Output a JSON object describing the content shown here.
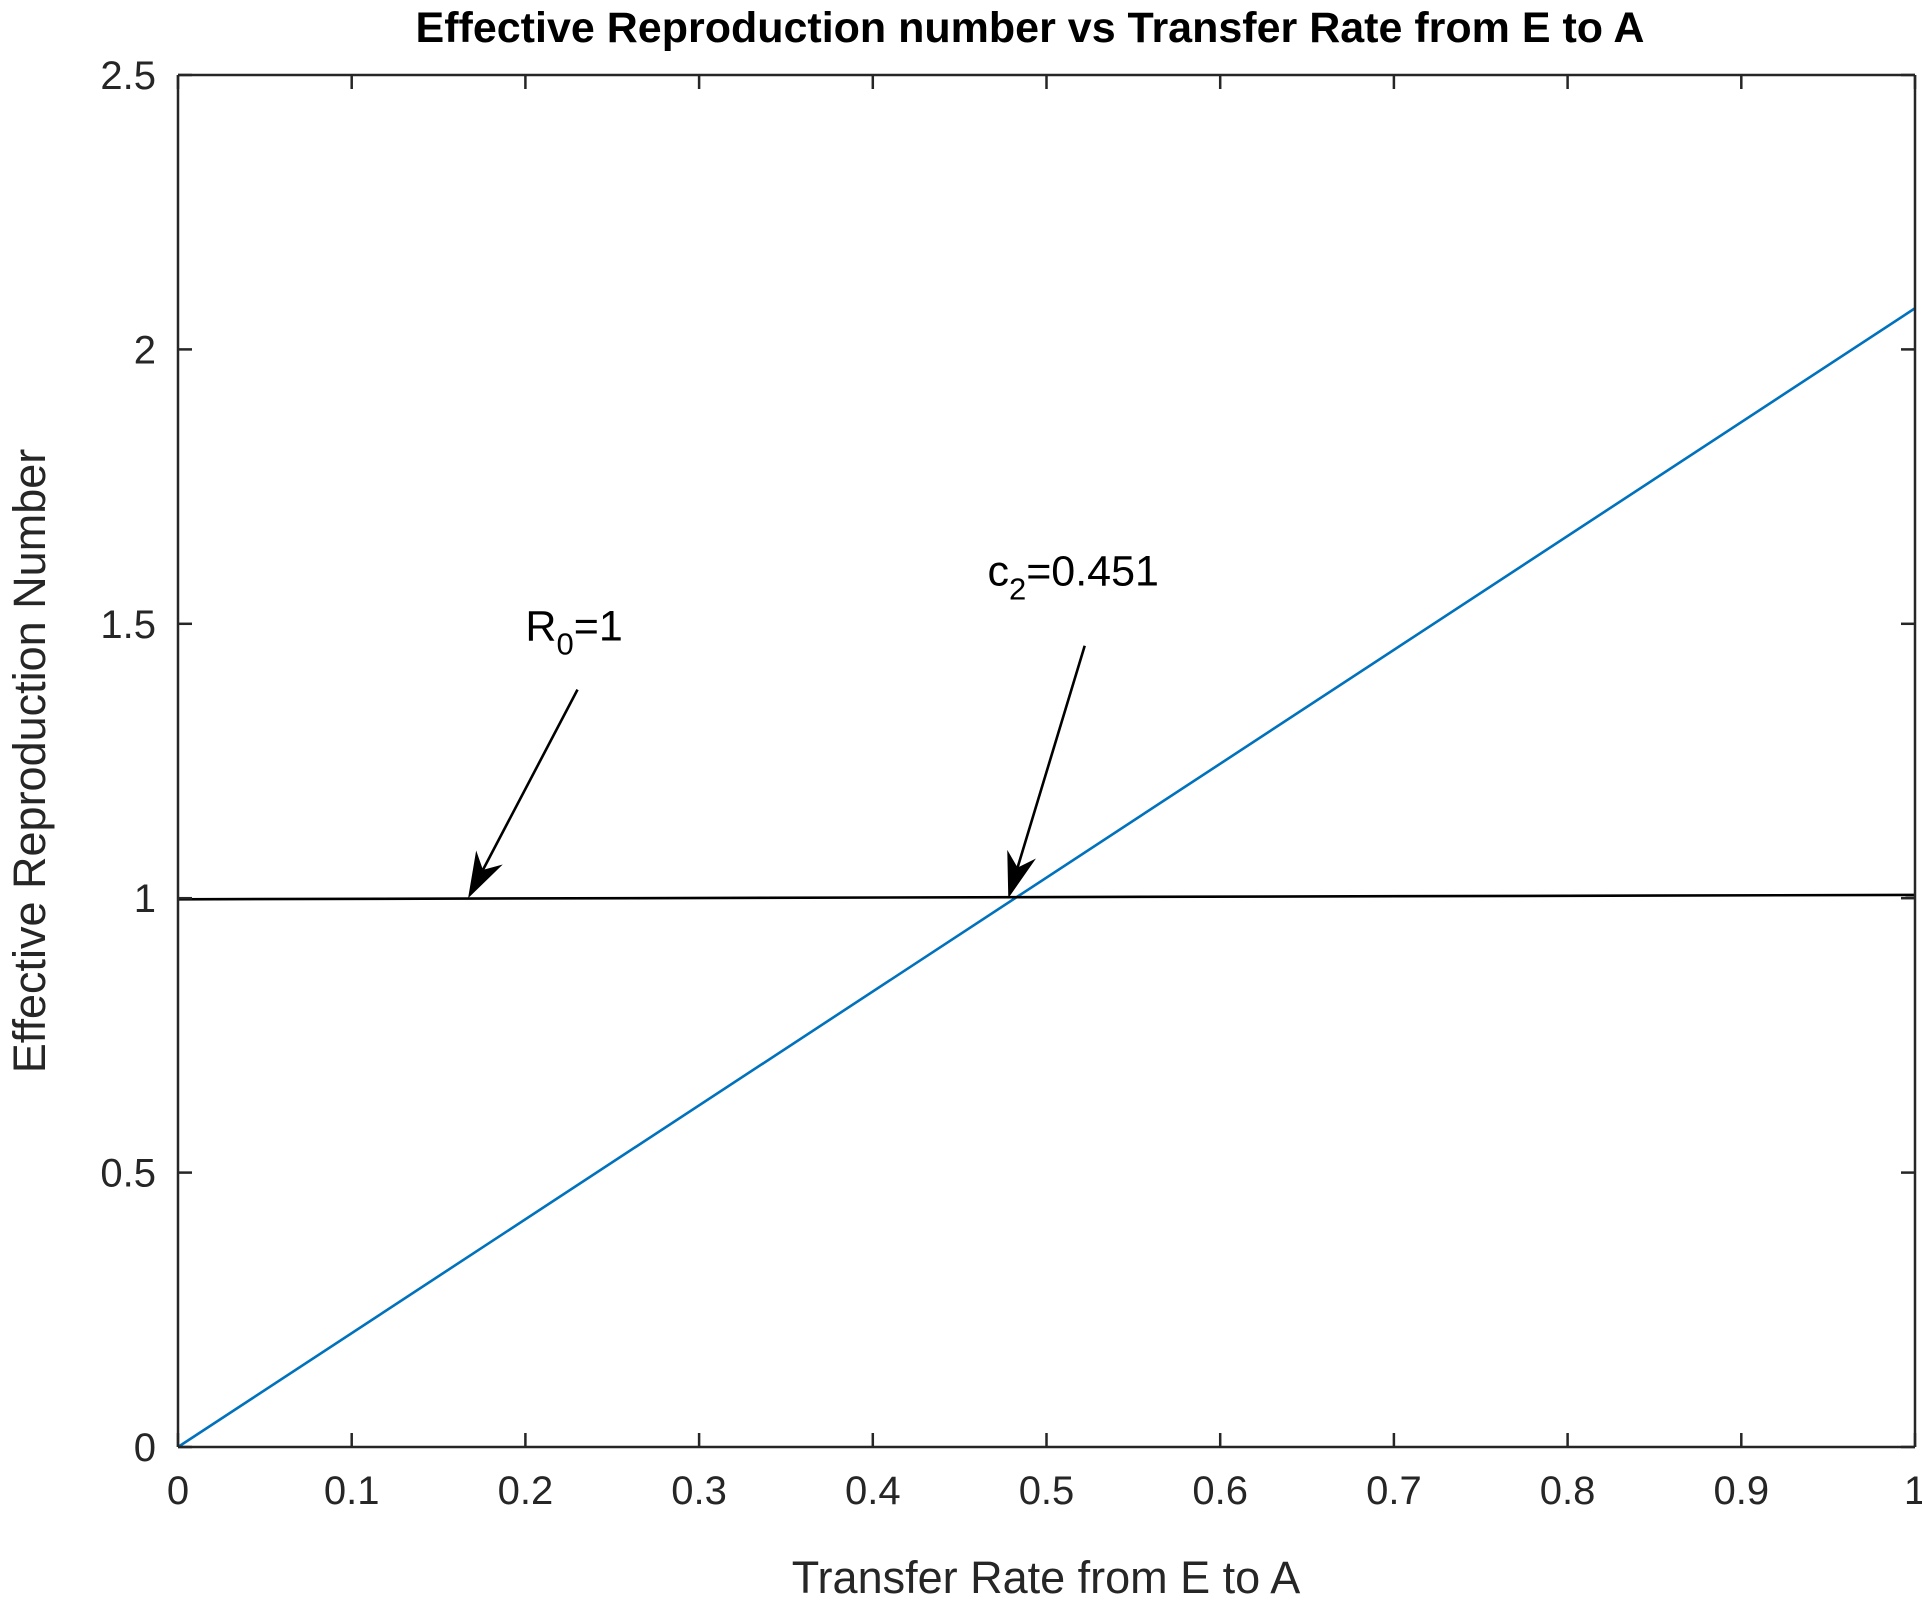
{
  "chart_data": {
    "type": "line",
    "title": "Effective Reproduction number vs Transfer Rate from E to A",
    "xlabel": "Transfer Rate from E to A",
    "ylabel": "Effective Reproduction Number",
    "xlim": [
      0,
      1
    ],
    "ylim": [
      0,
      2.5
    ],
    "xticks": [
      0,
      0.1,
      0.2,
      0.3,
      0.4,
      0.5,
      0.6,
      0.7,
      0.8,
      0.9,
      1
    ],
    "xtick_labels": [
      "0",
      "0.1",
      "0.2",
      "0.3",
      "0.4",
      "0.5",
      "0.6",
      "0.7",
      "0.8",
      "0.9",
      "1"
    ],
    "yticks": [
      0,
      0.5,
      1,
      1.5,
      2,
      2.5
    ],
    "ytick_labels": [
      "0",
      "0.5",
      "1",
      "1.5",
      "2",
      "2.5"
    ],
    "grid": false,
    "series": [
      {
        "x": [
          0,
          1
        ],
        "y": [
          0,
          2.075
        ],
        "color": "#0072bd"
      },
      {
        "x": [
          0,
          1
        ],
        "y": [
          0.998,
          1.006
        ],
        "color": "#000000"
      }
    ],
    "annotations": [
      {
        "base": "R",
        "sub": "0",
        "rest": "=1",
        "text_x": 0.2,
        "text_y": 1.47,
        "arrow_from": [
          0.23,
          1.38
        ],
        "arrow_to": [
          0.167,
          1.0
        ]
      },
      {
        "base": "c",
        "sub": "2",
        "rest": "=0.451",
        "text_x": 0.466,
        "text_y": 1.57,
        "arrow_from": [
          0.522,
          1.46
        ],
        "arrow_to": [
          0.478,
          1.0
        ]
      }
    ]
  }
}
